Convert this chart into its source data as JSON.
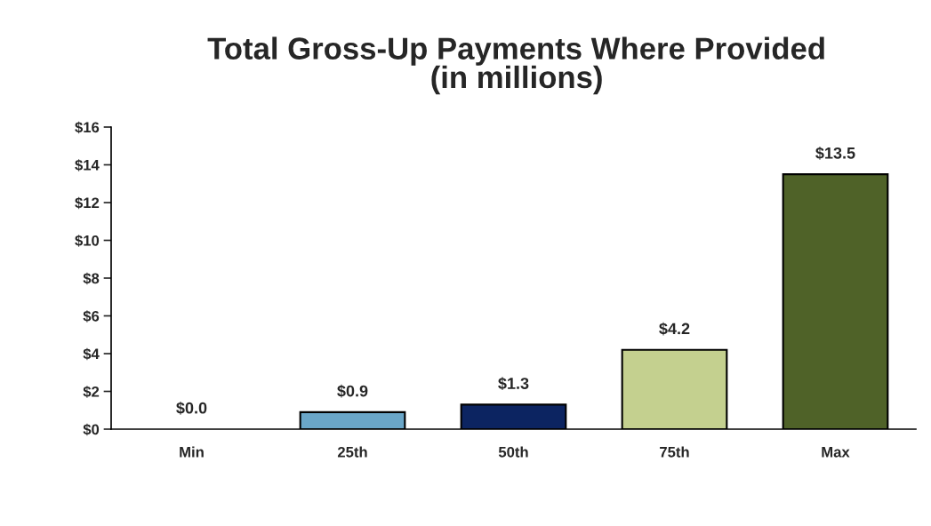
{
  "chart_data": {
    "type": "bar",
    "title": "Total Gross-Up Payments Where Provided\n(in millions)",
    "categories": [
      "Min",
      "25th",
      "50th",
      "75th",
      "Max"
    ],
    "values": [
      0.0,
      0.9,
      1.3,
      4.2,
      13.5
    ],
    "colors": [
      "#ffffff",
      "#6aa6c8",
      "#0c2461",
      "#c4d08f",
      "#4f6228"
    ],
    "value_labels": [
      "$0.0",
      "$0.9",
      "$1.3",
      "$4.2",
      "$13.5"
    ],
    "ylim": [
      0,
      16
    ],
    "yticks": [
      {
        "value": 0,
        "label": "$0"
      },
      {
        "value": 2,
        "label": "$2"
      },
      {
        "value": 4,
        "label": "$4"
      },
      {
        "value": 6,
        "label": "$6"
      },
      {
        "value": 8,
        "label": "$8"
      },
      {
        "value": 10,
        "label": "$10"
      },
      {
        "value": 12,
        "label": "$12"
      },
      {
        "value": 14,
        "label": "$14"
      },
      {
        "value": 16,
        "label": "$16"
      }
    ],
    "grid": false,
    "legend": false
  }
}
